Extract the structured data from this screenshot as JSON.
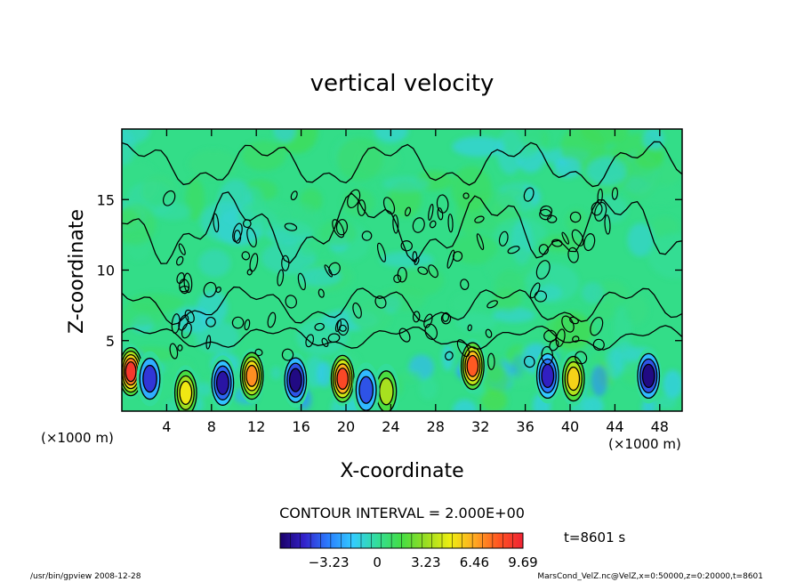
{
  "chart_data": {
    "type": "heatmap",
    "title": "vertical velocity",
    "xlabel": "X-coordinate",
    "ylabel": "Z-coordinate",
    "x_unit_left": "(×1000 m)",
    "x_unit_right": "(×1000 m)",
    "xlim": [
      0,
      50
    ],
    "ylim": [
      0,
      20
    ],
    "x_ticks": [
      4,
      8,
      12,
      16,
      20,
      24,
      28,
      32,
      36,
      40,
      44,
      48
    ],
    "y_ticks": [
      5,
      10,
      15
    ],
    "contour_interval_label": "CONTOUR INTERVAL = 2.000E+00",
    "colorbar": {
      "min": -6.46,
      "max": 9.69,
      "tick_values": [
        -3.23,
        0,
        3.23,
        6.46,
        9.69
      ],
      "tick_labels": [
        "−3.23",
        "0",
        "3.23",
        "6.46",
        "9.69"
      ]
    },
    "time_label": "t=8601 s",
    "footer_left": "/usr/bin/gpview   2008-12-28",
    "footer_right": "MarsCond_VelZ.nc@VelZ,x=0:50000,z=0:20000,t=8601",
    "features": [
      {
        "x": 0.8,
        "z": 2.8,
        "value": 9.0
      },
      {
        "x": 5.7,
        "z": 1.3,
        "value": 5.0
      },
      {
        "x": 11.6,
        "z": 2.5,
        "value": 7.0
      },
      {
        "x": 19.7,
        "z": 2.3,
        "value": 8.5
      },
      {
        "x": 23.6,
        "z": 1.4,
        "value": 3.5
      },
      {
        "x": 31.3,
        "z": 3.2,
        "value": 8.0
      },
      {
        "x": 40.3,
        "z": 2.3,
        "value": 5.5
      },
      {
        "x": 2.5,
        "z": 2.3,
        "value": -4.5
      },
      {
        "x": 9.0,
        "z": 2.0,
        "value": -5.5
      },
      {
        "x": 15.5,
        "z": 2.2,
        "value": -6.0
      },
      {
        "x": 21.8,
        "z": 1.5,
        "value": -4.0
      },
      {
        "x": 38.0,
        "z": 2.5,
        "value": -5.0
      },
      {
        "x": 47.0,
        "z": 2.5,
        "value": -6.0
      }
    ]
  },
  "colors": {
    "colorbar_stops": [
      "#1a0066",
      "#3322cc",
      "#2a7fff",
      "#33ccff",
      "#33dd99",
      "#44dd44",
      "#99dd22",
      "#eeee11",
      "#ffaa22",
      "#ff5522",
      "#ee2233"
    ],
    "background_field": "#33dd88"
  }
}
